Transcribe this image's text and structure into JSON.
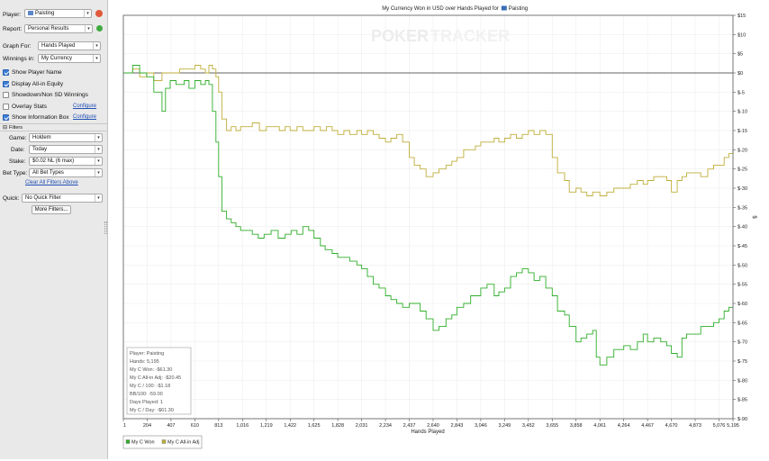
{
  "sidebar": {
    "player_label": "Player:",
    "player_value": "Paisting",
    "report_label": "Report:",
    "report_value": "Personal Results",
    "graph_for_label": "Graph For:",
    "graph_for_value": "Hands Played",
    "winnings_in_label": "Winnings in:",
    "winnings_in_value": "My Currency",
    "checkboxes": [
      {
        "label": "Show Player Name",
        "checked": true
      },
      {
        "label": "Display All-in Equity",
        "checked": true
      },
      {
        "label": "Showdown/Non SD Winnings",
        "checked": false
      },
      {
        "label": "Overlay Stats",
        "checked": false
      },
      {
        "label": "Show Information Box",
        "checked": true
      }
    ],
    "configure_label": "Configure",
    "filters_header": "Filters",
    "game_label": "Game:",
    "game_value": "Holdem",
    "date_label": "Date:",
    "date_value": "Today",
    "stake_label": "Stake:",
    "stake_value": "$0.02 NL (6 max)",
    "bet_type_label": "Bet Type:",
    "bet_type_value": "All Bet Types",
    "clear_filters": "Clear All Filters Above",
    "quick_label": "Quick:",
    "quick_value": "No Quick Filter",
    "more_filters": "More Filters..."
  },
  "chart": {
    "title_prefix": "My Currency Won in USD over Hands Played for",
    "title_player": "Paisting",
    "watermark_left": "POKER",
    "watermark_right": "TRACKER",
    "y_axis_label": "$",
    "info_box": [
      "Player: Paisting",
      "Hands: 5,195",
      "My C Won: -$61.30",
      "My C All-in Adj: -$20.45",
      "My C / 100: -$1.18",
      "BB/100: -59.00",
      "Days Played: 1",
      "My C / Day: -$61.30"
    ],
    "legend": [
      {
        "name": "My C Won",
        "color": "#2fae2a"
      },
      {
        "name": "My C All-in Adj",
        "color": "#bfae3a"
      }
    ]
  },
  "chart_data": {
    "type": "line",
    "xlabel": "Hands Played",
    "ylabel": "$",
    "xlim": [
      1,
      5195
    ],
    "ylim": [
      -90,
      15
    ],
    "x_ticks": [
      "1",
      "204",
      "407",
      "610",
      "813",
      "1,016",
      "1,219",
      "1,422",
      "1,625",
      "1,828",
      "2,031",
      "2,234",
      "2,437",
      "2,640",
      "2,843",
      "3,046",
      "3,249",
      "3,452",
      "3,655",
      "3,858",
      "4,061",
      "4,264",
      "4,467",
      "4,670",
      "4,873",
      "5,076",
      "5,195"
    ],
    "y_ticks": [
      "$15",
      "$10",
      "$5",
      "$0",
      "$-5",
      "$-10",
      "$-15",
      "$-20",
      "$-25",
      "$-30",
      "$-35",
      "$-40",
      "$-45",
      "$-50",
      "$-55",
      "$-60",
      "$-65",
      "$-70",
      "$-75",
      "$-80",
      "$-85",
      "$-90"
    ],
    "series": [
      {
        "name": "My C Won",
        "color": "#2fae2a",
        "x": [
          1,
          80,
          140,
          200,
          260,
          330,
          360,
          400,
          450,
          520,
          560,
          610,
          660,
          700,
          730,
          760,
          790,
          813,
          840,
          880,
          920,
          960,
          1000,
          1050,
          1100,
          1150,
          1200,
          1260,
          1320,
          1380,
          1430,
          1480,
          1530,
          1580,
          1625,
          1680,
          1720,
          1780,
          1828,
          1880,
          1930,
          1990,
          2031,
          2080,
          2130,
          2180,
          2234,
          2280,
          2330,
          2380,
          2437,
          2480,
          2530,
          2580,
          2640,
          2690,
          2750,
          2800,
          2843,
          2900,
          2960,
          3000,
          3046,
          3100,
          3160,
          3200,
          3249,
          3300,
          3350,
          3400,
          3452,
          3500,
          3550,
          3600,
          3655,
          3700,
          3760,
          3800,
          3858,
          3900,
          3950,
          4000,
          4030,
          4061,
          4120,
          4180,
          4230,
          4264,
          4320,
          4380,
          4430,
          4467,
          4520,
          4580,
          4630,
          4670,
          4720,
          4760,
          4800,
          4873,
          4920,
          4980,
          5030,
          5076,
          5120,
          5160,
          5195
        ],
        "y": [
          0,
          2,
          0,
          -1,
          -5,
          -10,
          -4,
          -2,
          -3,
          -2,
          -4,
          -2,
          -3,
          -2,
          -3,
          -10,
          -18,
          -27,
          -36,
          -38,
          -39,
          -40,
          -41,
          -41,
          -42,
          -43,
          -42,
          -41,
          -43,
          -42,
          -41,
          -42,
          -40,
          -41,
          -43,
          -45,
          -46,
          -47,
          -48,
          -48,
          -49,
          -50,
          -51,
          -53,
          -55,
          -56,
          -58,
          -59,
          -60,
          -61,
          -60,
          -60,
          -62,
          -64,
          -67,
          -66,
          -64,
          -63,
          -61,
          -60,
          -58,
          -58,
          -56,
          -55,
          -58,
          -57,
          -56,
          -53,
          -52,
          -51,
          -52,
          -54,
          -53,
          -56,
          -58,
          -62,
          -63,
          -66,
          -70,
          -69,
          -68,
          -67,
          -74,
          -76,
          -74,
          -72,
          -72,
          -71,
          -72,
          -70,
          -68,
          -70,
          -69,
          -70,
          -71,
          -73,
          -74,
          -69,
          -68,
          -68,
          -66,
          -66,
          -65,
          -64,
          -62,
          -61,
          -61
        ]
      },
      {
        "name": "My C All-in Adj",
        "color": "#bfae3a",
        "x": [
          1,
          80,
          140,
          200,
          260,
          330,
          400,
          480,
          560,
          610,
          660,
          700,
          730,
          760,
          790,
          813,
          840,
          880,
          920,
          960,
          1000,
          1050,
          1100,
          1160,
          1219,
          1280,
          1330,
          1380,
          1422,
          1480,
          1530,
          1580,
          1625,
          1680,
          1730,
          1780,
          1828,
          1880,
          1930,
          1990,
          2031,
          2080,
          2130,
          2180,
          2234,
          2280,
          2330,
          2380,
          2437,
          2480,
          2530,
          2580,
          2640,
          2690,
          2750,
          2800,
          2843,
          2900,
          2960,
          3000,
          3046,
          3100,
          3160,
          3200,
          3249,
          3300,
          3350,
          3400,
          3452,
          3500,
          3550,
          3600,
          3655,
          3700,
          3760,
          3800,
          3858,
          3900,
          3950,
          4000,
          4061,
          4120,
          4180,
          4230,
          4264,
          4320,
          4380,
          4430,
          4467,
          4520,
          4580,
          4630,
          4670,
          4720,
          4760,
          4800,
          4873,
          4920,
          4980,
          5030,
          5076,
          5120,
          5160,
          5195
        ],
        "y": [
          0,
          1,
          -1,
          0,
          -2,
          0,
          0,
          1,
          1,
          2,
          1,
          0,
          2,
          1,
          -1,
          -5,
          -12,
          -15,
          -14,
          -15,
          -14,
          -14,
          -13,
          -15,
          -14,
          -14,
          -15,
          -14,
          -15,
          -14,
          -15,
          -15,
          -14,
          -15,
          -14,
          -15,
          -16,
          -15,
          -16,
          -15,
          -16,
          -15,
          -16,
          -17,
          -18,
          -17,
          -16,
          -18,
          -22,
          -24,
          -25,
          -27,
          -26,
          -25,
          -24,
          -23,
          -22,
          -20,
          -20,
          -19,
          -18,
          -18,
          -17,
          -18,
          -17,
          -16,
          -17,
          -16,
          -15,
          -16,
          -15,
          -16,
          -22,
          -26,
          -28,
          -31,
          -30,
          -31,
          -32,
          -31,
          -32,
          -31,
          -30,
          -30,
          -30,
          -29,
          -28,
          -29,
          -28,
          -27,
          -27,
          -28,
          -31,
          -28,
          -27,
          -26,
          -26,
          -27,
          -25,
          -24,
          -24,
          -22,
          -21,
          -20
        ]
      }
    ],
    "grid": true
  }
}
